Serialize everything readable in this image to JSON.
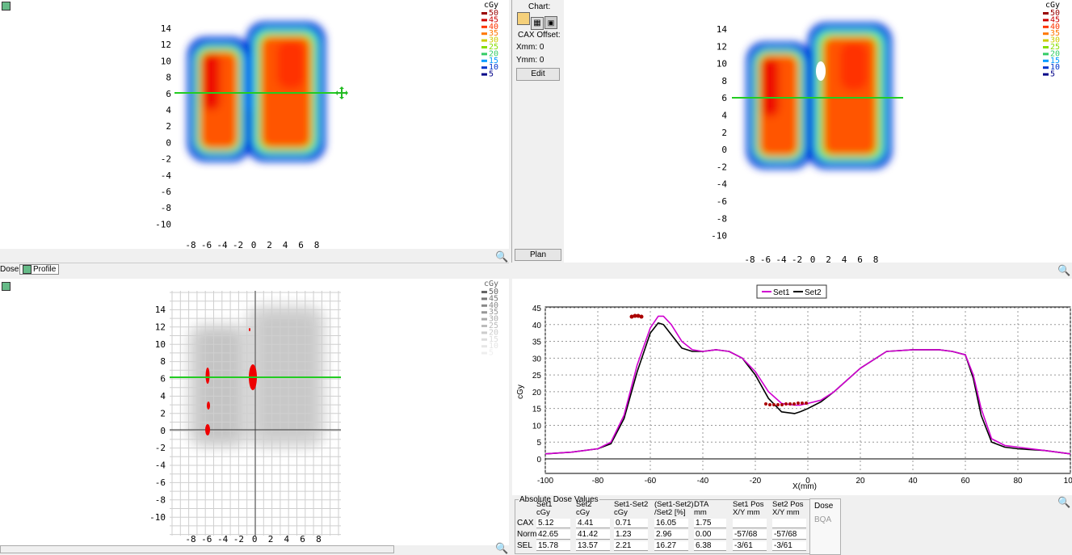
{
  "legend": {
    "unit": "cGy",
    "levels": [
      "50",
      "45",
      "40",
      "35",
      "30",
      "25",
      "20",
      "15",
      "10",
      "5"
    ],
    "colors": [
      "#990000",
      "#cc0000",
      "#ff3300",
      "#ff7700",
      "#cccc00",
      "#88dd00",
      "#33cc66",
      "#0099ff",
      "#0033cc",
      "#000088"
    ]
  },
  "axes": {
    "y_ticks": [
      "14",
      "12",
      "10",
      "8",
      "6",
      "4",
      "2",
      "0",
      "-2",
      "-4",
      "-6",
      "-8",
      "-10"
    ],
    "x_ticks": [
      "-8",
      "-6",
      "-4",
      "-2",
      "0",
      "2",
      "4",
      "6",
      "8"
    ]
  },
  "tabs": {
    "dose": "Dose",
    "profile": "Profile"
  },
  "sidebar": {
    "chart_label": "Chart:",
    "cax_offset": "CAX Offset:",
    "xmm": "Xmm: 0",
    "ymm": "Ymm: 0",
    "edit": "Edit",
    "plan": "Plan"
  },
  "profile_chart": {
    "legend": [
      "Set1",
      "Set2"
    ],
    "xlabel": "X(mm)",
    "ylabel": "cGy"
  },
  "chart_data": {
    "type": "line",
    "xlabel": "X(mm)",
    "ylabel": "cGy",
    "xlim": [
      -100,
      100
    ],
    "ylim": [
      0,
      45
    ],
    "x_ticks": [
      "-100",
      "-80",
      "-60",
      "-40",
      "-20",
      "0",
      "20",
      "40",
      "60",
      "80",
      "100"
    ],
    "y_ticks": [
      "45",
      "40",
      "35",
      "30",
      "25",
      "20",
      "15",
      "10",
      "5",
      "0"
    ],
    "series": [
      {
        "name": "Set1",
        "color": "#d000d0",
        "x": [
          -100,
          -90,
          -80,
          -75,
          -70,
          -65,
          -60,
          -57,
          -55,
          -52,
          -48,
          -44,
          -40,
          -35,
          -30,
          -25,
          -20,
          -15,
          -10,
          -5,
          -3,
          0,
          5,
          10,
          20,
          30,
          40,
          50,
          55,
          60,
          63,
          66,
          70,
          75,
          80,
          90,
          100
        ],
        "y": [
          1.5,
          2,
          3,
          5,
          13,
          28,
          39,
          42.5,
          42.5,
          40,
          35,
          32.5,
          32,
          32.5,
          32,
          30,
          26,
          20,
          16.5,
          16,
          16,
          16.5,
          17.5,
          20,
          27,
          32,
          32.5,
          32.5,
          32,
          31,
          25,
          15,
          6,
          4,
          3.5,
          2.5,
          1.5
        ]
      },
      {
        "name": "Set2",
        "color": "#000000",
        "x": [
          -100,
          -90,
          -80,
          -75,
          -70,
          -65,
          -60,
          -57,
          -55,
          -52,
          -48,
          -44,
          -40,
          -35,
          -30,
          -25,
          -20,
          -15,
          -10,
          -5,
          -3,
          0,
          5,
          10,
          20,
          30,
          40,
          50,
          55,
          60,
          63,
          66,
          70,
          75,
          80,
          90,
          100
        ],
        "y": [
          1.5,
          2,
          3,
          4.5,
          12,
          26,
          37.5,
          40.5,
          40,
          37,
          33,
          32,
          32,
          32.5,
          32,
          30,
          25,
          18,
          14,
          13.5,
          14,
          15,
          17,
          20,
          27,
          32,
          32.5,
          32.5,
          32,
          31,
          24,
          13,
          5,
          3.5,
          3,
          2.5,
          1.5
        ]
      }
    ]
  },
  "table": {
    "group_title": "Absolute Dose Values",
    "headers": [
      {
        "l1": "Set1",
        "l2": "cGy"
      },
      {
        "l1": "Set2",
        "l2": "cGy"
      },
      {
        "l1": "Set1-Set2",
        "l2": "cGy"
      },
      {
        "l1": "(Set1-Set2)",
        "l2": "/Set2 [%]"
      },
      {
        "l1": "DTA",
        "l2": "mm"
      },
      {
        "l1": "Set1 Pos",
        "l2": "X/Y mm"
      },
      {
        "l1": "Set2 Pos",
        "l2": "X/Y mm"
      }
    ],
    "rows": [
      {
        "label": "CAX",
        "values": [
          "5.12",
          "4.41",
          "0.71",
          "16.05",
          "1.75",
          "",
          ""
        ]
      },
      {
        "label": "Norm",
        "values": [
          "42.65",
          "41.42",
          "1.23",
          "2.96",
          "0.00",
          "-57/68",
          "-57/68"
        ]
      },
      {
        "label": "SEL",
        "values": [
          "15.78",
          "13.57",
          "2.21",
          "16.27",
          "6.38",
          "-3/61",
          "-3/61"
        ]
      }
    ],
    "side_tabs": [
      "Dose",
      "BQA"
    ]
  }
}
